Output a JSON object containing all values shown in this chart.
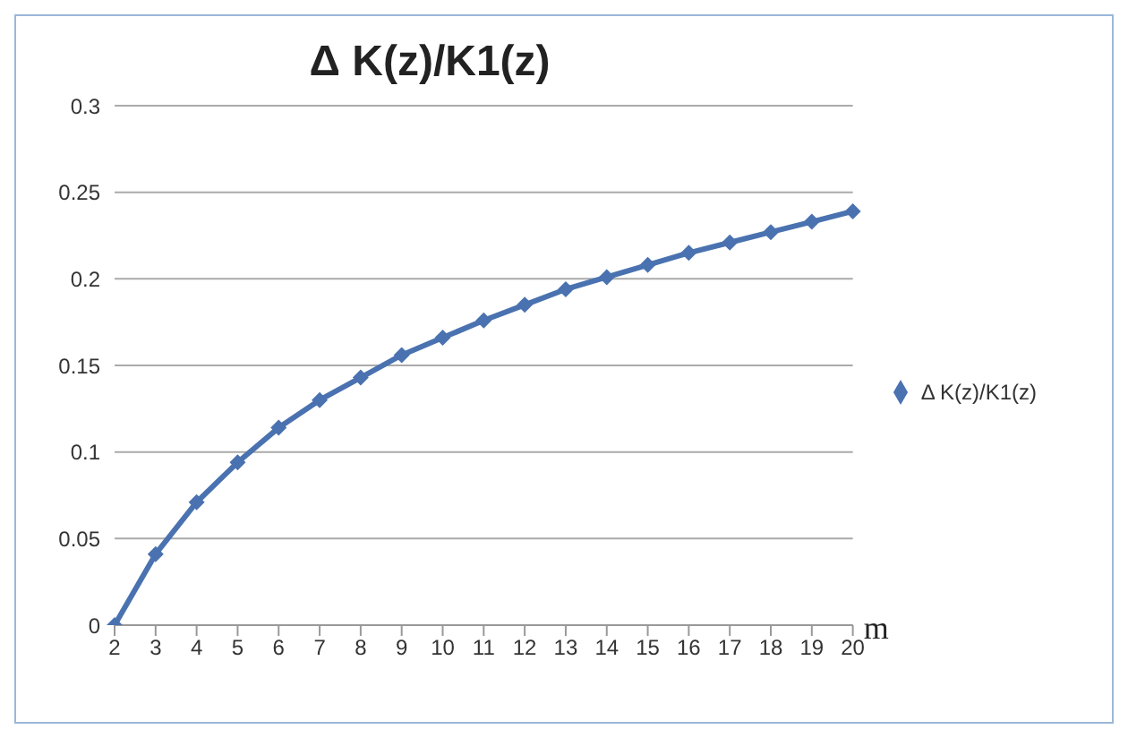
{
  "chart_data": {
    "type": "line",
    "title": "Δ K(z)/K1(z)",
    "xlabel": "m",
    "categories": [
      "2",
      "3",
      "4",
      "5",
      "6",
      "7",
      "8",
      "9",
      "10",
      "11",
      "12",
      "13",
      "14",
      "15",
      "16",
      "17",
      "18",
      "19",
      "20"
    ],
    "series": [
      {
        "name": "Δ K(z)/K1(z)",
        "color": "#4a72b0",
        "values": [
          0,
          0.041,
          0.071,
          0.094,
          0.114,
          0.13,
          0.143,
          0.156,
          0.166,
          0.176,
          0.185,
          0.194,
          0.201,
          0.208,
          0.215,
          0.221,
          0.227,
          0.233,
          0.239
        ]
      }
    ],
    "ylim": [
      0,
      0.3
    ],
    "yticks": [
      0,
      0.05,
      0.1,
      0.15,
      0.2,
      0.25,
      0.3
    ],
    "grid": "y",
    "legend": "right",
    "marker": "diamond",
    "line_style": "solid"
  }
}
